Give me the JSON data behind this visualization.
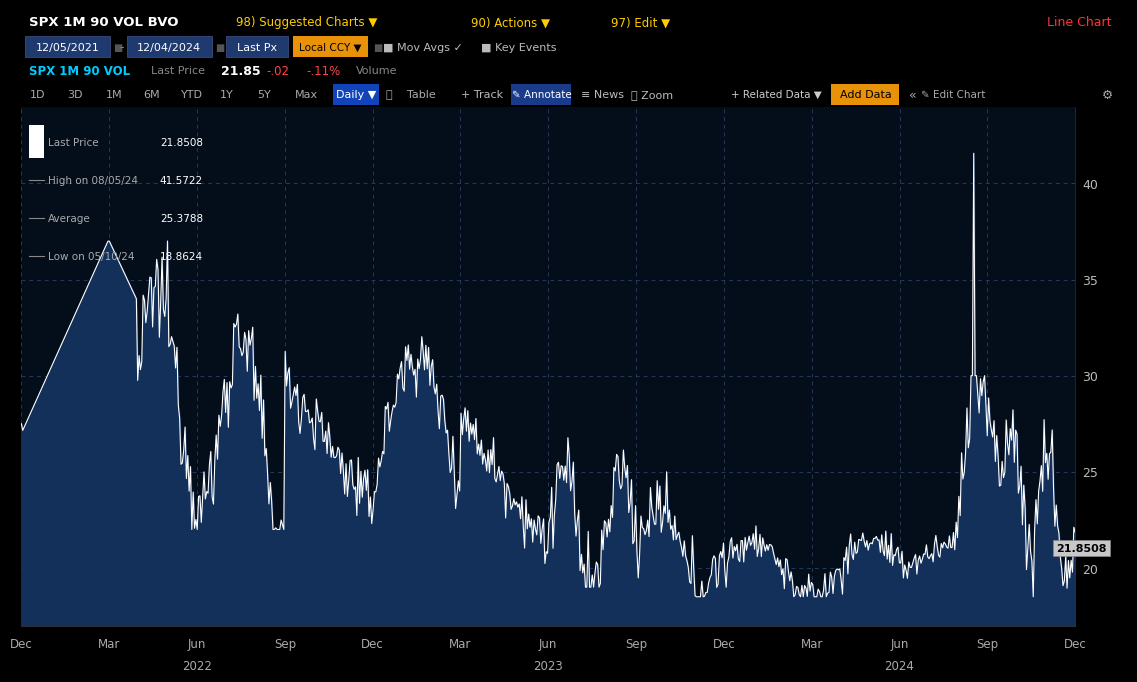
{
  "title": "SPX 1M 90 VOL BVO",
  "date_range_start": "12/05/2021",
  "date_range_end": "12/04/2024",
  "legend_items": [
    {
      "label": "Last Price",
      "value": "21.8508"
    },
    {
      "label": "High on 08/05/24",
      "value": "41.5722"
    },
    {
      "label": "Average",
      "value": "25.3788"
    },
    {
      "label": "Low on 05/10/24",
      "value": "18.8624"
    }
  ],
  "y_ticks": [
    20,
    25,
    30,
    35,
    40
  ],
  "y_min": 17.0,
  "y_max": 44.0,
  "last_price_annotation": "21.8508",
  "chart_bg": "#040D1A",
  "line_color": "#FFFFFF",
  "fill_color": "#12305A",
  "grid_color": "#243A58",
  "x_labels": [
    "Dec",
    "Mar",
    "Jun",
    "Sep",
    "Dec",
    "Mar",
    "Jun",
    "Sep",
    "Dec",
    "Mar",
    "Jun",
    "Sep",
    "Dec"
  ],
  "year_labels": [
    {
      "text": "2022",
      "idx": 2
    },
    {
      "text": "2023",
      "idx": 6
    },
    {
      "text": "2024",
      "idx": 10
    }
  ],
  "header1_bg": "#7D0A1E",
  "header2_bg": "#0A0A0A",
  "header3_bg": "#0A0A0A",
  "toolbar_bg": "#111111",
  "nav_tabs": [
    "1D",
    "3D",
    "1M",
    "6M",
    "YTD",
    "1Y",
    "5Y",
    "Max"
  ]
}
